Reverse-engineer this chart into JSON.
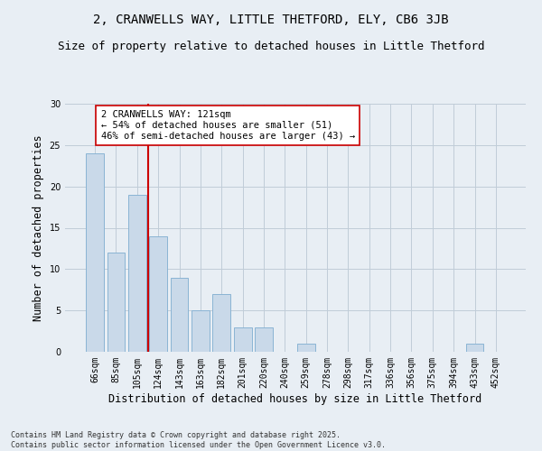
{
  "title_line1": "2, CRANWELLS WAY, LITTLE THETFORD, ELY, CB6 3JB",
  "title_line2": "Size of property relative to detached houses in Little Thetford",
  "categories": [
    "66sqm",
    "85sqm",
    "105sqm",
    "124sqm",
    "143sqm",
    "163sqm",
    "182sqm",
    "201sqm",
    "220sqm",
    "240sqm",
    "259sqm",
    "278sqm",
    "298sqm",
    "317sqm",
    "336sqm",
    "356sqm",
    "375sqm",
    "394sqm",
    "433sqm",
    "452sqm"
  ],
  "values": [
    24,
    12,
    19,
    14,
    9,
    5,
    7,
    3,
    3,
    0,
    1,
    0,
    0,
    0,
    0,
    0,
    0,
    0,
    1,
    0
  ],
  "bar_color": "#c9d9e9",
  "bar_edge_color": "#8ab4d4",
  "ylabel": "Number of detached properties",
  "xlabel": "Distribution of detached houses by size in Little Thetford",
  "ylim": [
    0,
    30
  ],
  "yticks": [
    0,
    5,
    10,
    15,
    20,
    25,
    30
  ],
  "vline_color": "#cc0000",
  "annotation_text": "2 CRANWELLS WAY: 121sqm\n← 54% of detached houses are smaller (51)\n46% of semi-detached houses are larger (43) →",
  "annotation_box_color": "#ffffff",
  "annotation_box_edge": "#cc0000",
  "footer_text": "Contains HM Land Registry data © Crown copyright and database right 2025.\nContains public sector information licensed under the Open Government Licence v3.0.",
  "background_color": "#e8eef4",
  "plot_background_color": "#e8eef4",
  "grid_color": "#c0ccd8",
  "title_fontsize": 10,
  "subtitle_fontsize": 9,
  "tick_fontsize": 7,
  "label_fontsize": 8.5,
  "footer_fontsize": 6,
  "annotation_fontsize": 7.5
}
